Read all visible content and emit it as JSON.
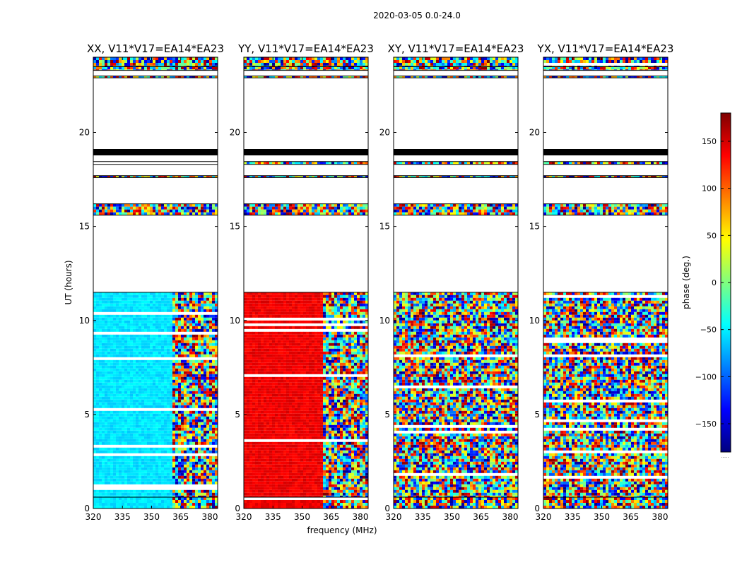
{
  "chart_data": {
    "type": "heatmap",
    "suptitle": "2020-03-05 0.0-24.0",
    "xlabel": "frequency (MHz)",
    "ylabel": "UT (hours)",
    "xlim": [
      320,
      384
    ],
    "xticks": [
      320,
      335,
      350,
      365,
      380
    ],
    "ylim": [
      0,
      24
    ],
    "yticks": [
      0,
      5,
      10,
      15,
      20
    ],
    "panels": [
      {
        "title": "XX, V11*V17=EA14*EA23",
        "pol": "XX"
      },
      {
        "title": "YY, V11*V17=EA14*EA23",
        "pol": "YY"
      },
      {
        "title": "XY, V11*V17=EA14*EA23",
        "pol": "XY"
      },
      {
        "title": "YX, V11*V17=EA14*EA23",
        "pol": "YX"
      }
    ],
    "data_blocks_ut_hours": [
      [
        0.0,
        0.6
      ],
      [
        0.6,
        11.5
      ],
      [
        15.6,
        16.2
      ],
      [
        17.6,
        17.7
      ],
      [
        18.3,
        18.45
      ],
      [
        18.8,
        19.1
      ],
      [
        22.9,
        23.0
      ],
      [
        23.3,
        23.5
      ],
      [
        23.5,
        24.0
      ]
    ],
    "colorbar": {
      "label": "phase (deg.)",
      "range": [
        -180,
        180
      ],
      "ticks": [
        -150,
        -100,
        -50,
        0,
        50,
        100,
        150
      ],
      "colormap": "jet",
      "footnote": "....."
    }
  }
}
